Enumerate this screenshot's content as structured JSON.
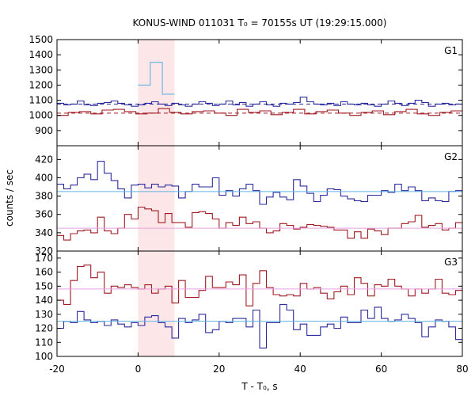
{
  "chart_data": {
    "type": "line",
    "title": "KONUS-WIND 011031 T₀ = 70155s UT (19:29:15.000)",
    "xlabel": "T - T₀, s",
    "ylabel": "counts / sec",
    "xlim": [
      -20,
      80
    ],
    "xticks": [
      "-20",
      "0",
      "20",
      "40",
      "60",
      "80"
    ],
    "highlight_interval": [
      0,
      9
    ],
    "colors": {
      "blue": "#2b2b9e",
      "red": "#a01a22",
      "light_blue": "#5fb4e6",
      "pink": "#e8a0e0",
      "highlight": "#fde6e8"
    },
    "panels": [
      {
        "label": "G1",
        "ylim": [
          800,
          1500
        ],
        "yticks": [
          800,
          900,
          1000,
          1100,
          1200,
          1300,
          1400,
          1500
        ],
        "show_ticks": [
          "900",
          "1000",
          "1100",
          "1200",
          "1300",
          "1400",
          "1500"
        ],
        "bin_start": -20,
        "bin_width": 2.9,
        "series": [
          {
            "color": "blue",
            "values": [
              1080,
              1070,
              1075,
              1095,
              1070,
              1065,
              1080,
              1085,
              1095,
              1080,
              1070,
              1060,
              1070,
              1080,
              1090,
              1075,
              1065,
              1080,
              1070,
              1060,
              1075,
              1090,
              1080,
              1065,
              1075,
              1095,
              1070,
              1085,
              1060,
              1075,
              1090,
              1070,
              1060,
              1080,
              1075,
              1085,
              1120,
              1090,
              1075,
              1070,
              1080,
              1065,
              1090,
              1075,
              1070,
              1080,
              1070,
              1060,
              1075,
              1095,
              1080,
              1065,
              1080,
              1100,
              1085,
              1060,
              1075,
              1080,
              1070,
              1075
            ],
            "mode": "default"
          },
          {
            "color": "light_blue",
            "values": [
              1200,
              1350,
              1140
            ],
            "start": 0,
            "width": 3
          },
          {
            "color": "red",
            "values": [
              1000,
              1020,
              1025,
              1010,
              1035,
              1040,
              1025,
              1010,
              1015,
              1045,
              1020,
              1010,
              1025,
              1030,
              1015,
              1000,
              1040,
              1020,
              1030,
              1005,
              1020,
              1040,
              1010,
              1025,
              1035,
              1015,
              1000,
              1020,
              1030,
              1005,
              1025,
              1040,
              1010,
              1000,
              1020,
              1030
            ],
            "mode": "default"
          }
        ],
        "fits": [
          {
            "color": "blue",
            "value": 1075,
            "dashed": true
          },
          {
            "color": "red",
            "value": 1015,
            "dashed": true
          }
        ]
      },
      {
        "label": "G2",
        "ylim": [
          320,
          435
        ],
        "yticks": [
          320,
          340,
          360,
          380,
          400,
          420
        ],
        "show_ticks": [
          "320",
          "340",
          "360",
          "380",
          "400",
          "420"
        ],
        "series": [
          {
            "color": "blue",
            "values": [
              393,
              388,
              392,
              400,
              404,
              398,
              418,
              405,
              397,
              388,
              378,
              392,
              393,
              389,
              393,
              390,
              392,
              391,
              378,
              385,
              393,
              390,
              390,
              400,
              381,
              386,
              380,
              388,
              393,
              386,
              371,
              379,
              384,
              379,
              376,
              398,
              391,
              383,
              374,
              381,
              388,
              387,
              380,
              377,
              375,
              374,
              381,
              381,
              386,
              384,
              393,
              386,
              390,
              386,
              375,
              378,
              375,
              374,
              385,
              386
            ]
          },
          {
            "color": "red",
            "values": [
              337,
              332,
              339,
              342,
              343,
              340,
              357,
              342,
              339,
              345,
              360,
              355,
              368,
              366,
              364,
              351,
              361,
              351,
              351,
              346,
              362,
              363,
              361,
              355,
              345,
              351,
              348,
              357,
              350,
              352,
              345,
              340,
              342,
              350,
              348,
              344,
              346,
              349,
              348,
              347,
              346,
              343,
              343,
              334,
              341,
              334,
              344,
              342,
              338,
              345,
              345,
              350,
              352,
              359,
              346,
              348,
              350,
              343,
              345,
              351
            ]
          }
        ],
        "fits": [
          {
            "color": "light_blue",
            "value": 385,
            "dashed": false
          },
          {
            "color": "pink",
            "value": 345,
            "dashed": false
          }
        ]
      },
      {
        "label": "G3",
        "ylim": [
          100,
          175
        ],
        "yticks": [
          100,
          110,
          120,
          130,
          140,
          150,
          160,
          170
        ],
        "show_ticks": [
          "100",
          "110",
          "120",
          "130",
          "140",
          "150",
          "160",
          "170"
        ],
        "series": [
          {
            "color": "blue",
            "values": [
              120,
              125,
              124,
              132,
              126,
              124,
              125,
              122,
              126,
              123,
              121,
              124,
              122,
              128,
              129,
              124,
              121,
              113,
              127,
              124,
              126,
              130,
              117,
              119,
              125,
              124,
              127,
              127,
              121,
              133,
              106,
              124,
              124,
              137,
              133,
              119,
              123,
              115,
              115,
              121,
              123,
              120,
              128,
              124,
              124,
              133,
              127,
              135,
              127,
              125,
              126,
              130,
              127,
              124,
              114,
              121,
              126,
              125,
              121,
              112
            ]
          },
          {
            "color": "red",
            "values": [
              140,
              137,
              154,
              164,
              165,
              156,
              160,
              145,
              150,
              149,
              151,
              149,
              148,
              151,
              145,
              148,
              150,
              138,
              154,
              142,
              142,
              147,
              157,
              149,
              149,
              153,
              151,
              158,
              136,
              152,
              161,
              149,
              144,
              143,
              144,
              143,
              152,
              148,
              149,
              145,
              141,
              146,
              150,
              144,
              156,
              152,
              143,
              151,
              150,
              155,
              150,
              148,
              143,
              148,
              145,
              148,
              155,
              145,
              144,
              147
            ]
          }
        ],
        "fits": [
          {
            "color": "light_blue",
            "value": 125,
            "dashed": false
          },
          {
            "color": "pink",
            "value": 148,
            "dashed": false
          }
        ]
      }
    ]
  }
}
